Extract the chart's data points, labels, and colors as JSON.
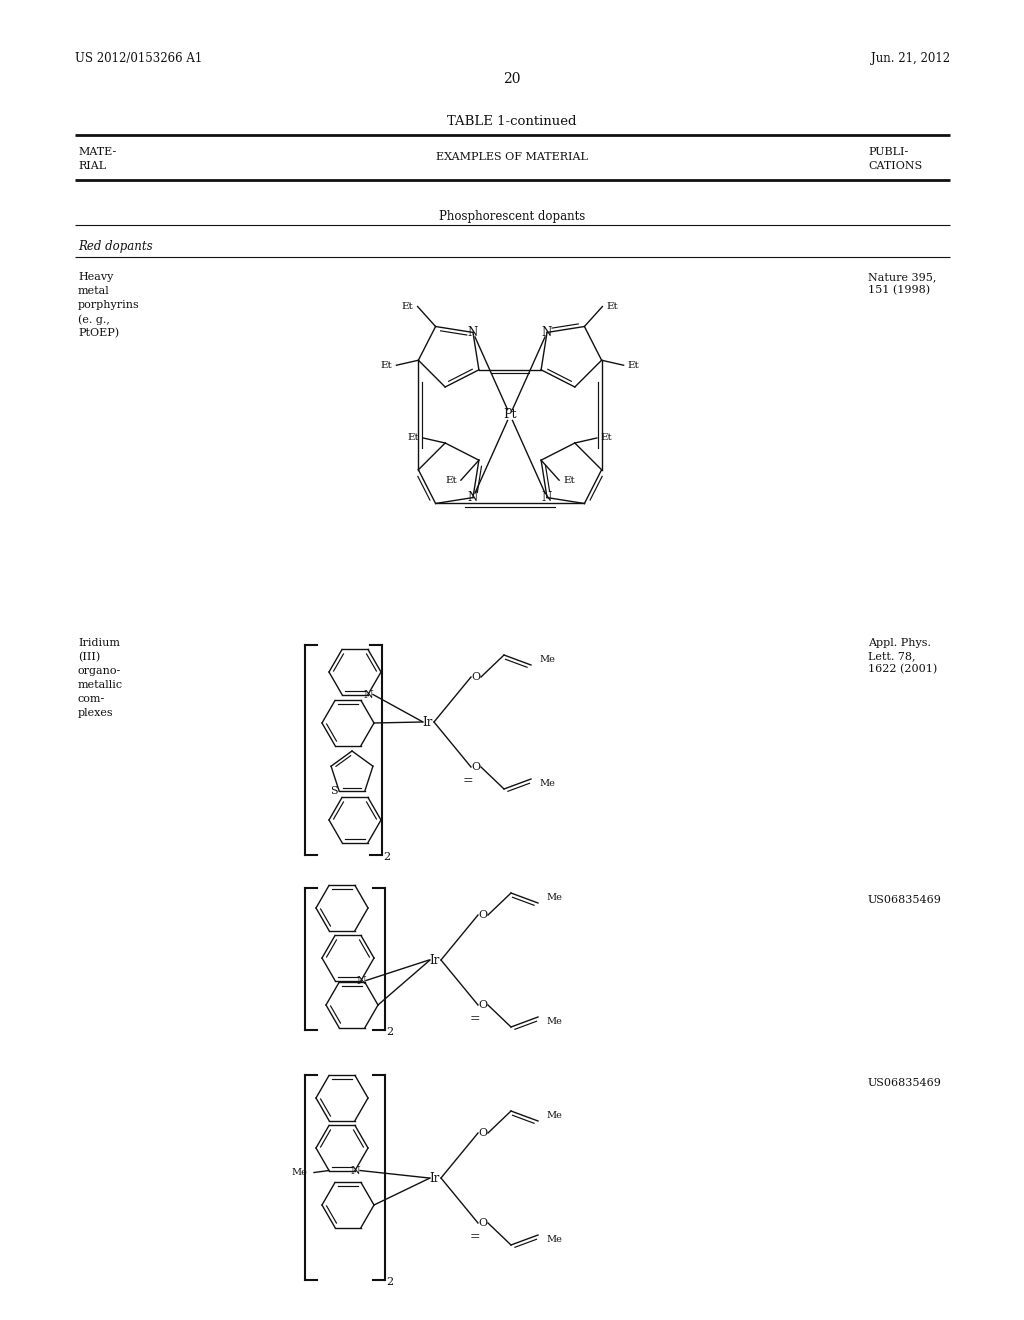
{
  "background_color": "#ffffff",
  "page_number": "20",
  "patent_number": "US 2012/0153266 A1",
  "patent_date": "Jun. 21, 2012",
  "table_title": "TABLE 1-continued",
  "col1_header_line1": "MATE-",
  "col1_header_line2": "RIAL",
  "col2_header": "EXAMPLES OF MATERIAL",
  "col3_header_line1": "PUBLI-",
  "col3_header_line2": "CATIONS",
  "section_label": "Phosphorescent dopants",
  "subsection_label": "Red dopants",
  "row1_material": [
    "Heavy",
    "metal",
    "porphyrins",
    "(e. g.,",
    "PtOEP)"
  ],
  "row1_citation": [
    "Nature 395,",
    "151 (1998)"
  ],
  "row2_material": [
    "Iridium",
    "(III)",
    "organo-",
    "metallic",
    "com-",
    "plexes"
  ],
  "row2_citation": [
    "Appl. Phys.",
    "Lett. 78,",
    "1622 (2001)"
  ],
  "row3_citation": "US06835469",
  "row4_citation": "US06835469",
  "lw_thick": 2.0,
  "lw_thin": 0.8,
  "lw_chem": 1.0
}
